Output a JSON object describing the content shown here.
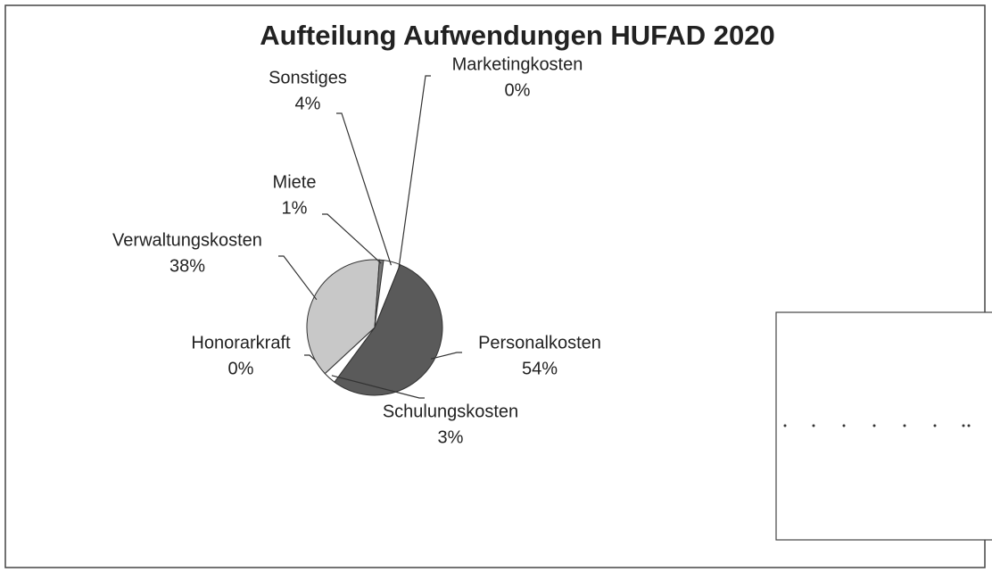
{
  "chart_data": {
    "type": "pie",
    "title": "Aufteilung Aufwendungen HUFAD 2020",
    "categories": [
      "Personalkosten",
      "Schulungskosten",
      "Honorarkraft",
      "Verwaltungskosten",
      "Miete",
      "Sonstiges",
      "Marketingkosten"
    ],
    "values": [
      54,
      3,
      0,
      38,
      1,
      4,
      0
    ],
    "value_labels": [
      "54%",
      "3%",
      "0%",
      "38%",
      "1%",
      "4%",
      "0%"
    ],
    "colors": [
      "#5a5a5a",
      "#ffffff",
      "#999999",
      "#c8c8c8",
      "#777777",
      "#ffffff",
      "#ffffff"
    ]
  }
}
